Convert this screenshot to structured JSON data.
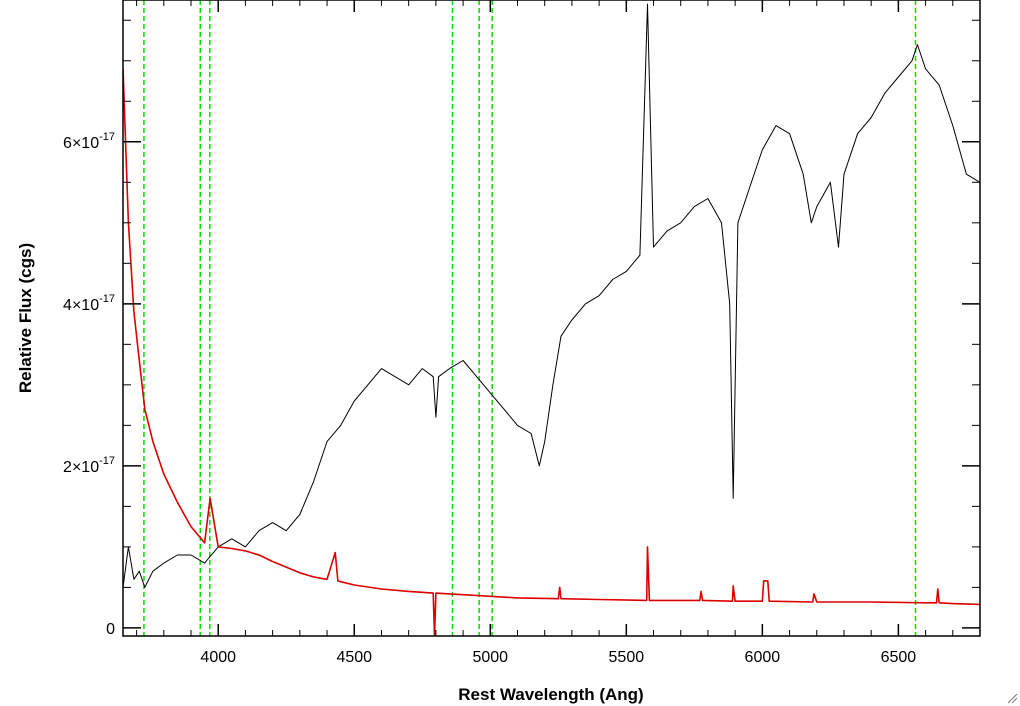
{
  "chart_data": {
    "type": "line",
    "xlabel": "Rest Wavelength (Ang)",
    "ylabel": "Relative Flux (cgs)",
    "xlim": [
      3650,
      6800
    ],
    "ylim": [
      -1e-18,
      7.75e-17
    ],
    "x_ticks": [
      {
        "value": 4000,
        "label": "4000"
      },
      {
        "value": 4500,
        "label": "4500"
      },
      {
        "value": 5000,
        "label": "5000"
      },
      {
        "value": 5500,
        "label": "5500"
      },
      {
        "value": 6000,
        "label": "6000"
      },
      {
        "value": 6500,
        "label": "6500"
      }
    ],
    "y_ticks": [
      {
        "value": 0,
        "mantissa": "0",
        "exponent": ""
      },
      {
        "value": 2e-17,
        "mantissa": "2×10",
        "exponent": "-17"
      },
      {
        "value": 4e-17,
        "mantissa": "4×10",
        "exponent": "-17"
      },
      {
        "value": 6e-17,
        "mantissa": "6×10",
        "exponent": "-17"
      }
    ],
    "grid": false,
    "legend": "none",
    "colors": {
      "spectrum": "#000000",
      "error": "#dd0000",
      "lines": "#00dd00"
    },
    "reference_lines": [
      3727,
      3934,
      3969,
      4861,
      4959,
      5007,
      6563
    ],
    "series": [
      {
        "color": "#000000",
        "x": [
          3650,
          3670,
          3690,
          3710,
          3730,
          3760,
          3800,
          3850,
          3900,
          3950,
          4000,
          4050,
          4100,
          4150,
          4200,
          4250,
          4300,
          4350,
          4400,
          4450,
          4500,
          4550,
          4600,
          4650,
          4700,
          4750,
          4790,
          4800,
          4810,
          4850,
          4900,
          4950,
          5000,
          5050,
          5100,
          5150,
          5180,
          5200,
          5230,
          5260,
          5300,
          5350,
          5400,
          5450,
          5500,
          5550,
          5578,
          5600,
          5650,
          5700,
          5750,
          5800,
          5850,
          5880,
          5893,
          5910,
          5950,
          6000,
          6050,
          6100,
          6150,
          6180,
          6200,
          6250,
          6280,
          6300,
          6350,
          6400,
          6450,
          6500,
          6550,
          6570,
          6600,
          6650,
          6700,
          6750,
          6800
        ],
        "y": [
          5e-18,
          1e-17,
          6e-18,
          7e-18,
          5e-18,
          7e-18,
          8e-18,
          9e-18,
          9e-18,
          8e-18,
          1e-17,
          1.1e-17,
          1e-17,
          1.2e-17,
          1.3e-17,
          1.2e-17,
          1.4e-17,
          1.8e-17,
          2.3e-17,
          2.5e-17,
          2.8e-17,
          3e-17,
          3.2e-17,
          3.1e-17,
          3e-17,
          3.2e-17,
          3.1e-17,
          2.6e-17,
          3.1e-17,
          3.2e-17,
          3.3e-17,
          3.1e-17,
          2.9e-17,
          2.7e-17,
          2.5e-17,
          2.4e-17,
          2e-17,
          2.3e-17,
          3e-17,
          3.6e-17,
          3.8e-17,
          4e-17,
          4.1e-17,
          4.3e-17,
          4.4e-17,
          4.6e-17,
          7.7e-17,
          4.7e-17,
          4.9e-17,
          5e-17,
          5.2e-17,
          5.3e-17,
          5e-17,
          4e-17,
          1.6e-17,
          5e-17,
          5.4e-17,
          5.9e-17,
          6.2e-17,
          6.1e-17,
          5.6e-17,
          5e-17,
          5.2e-17,
          5.5e-17,
          4.7e-17,
          5.6e-17,
          6.1e-17,
          6.3e-17,
          6.6e-17,
          6.8e-17,
          7e-17,
          7.2e-17,
          6.9e-17,
          6.7e-17,
          6.2e-17,
          5.6e-17,
          5.5e-17
        ]
      },
      {
        "color": "#dd0000",
        "x": [
          3650,
          3670,
          3690,
          3710,
          3730,
          3760,
          3800,
          3850,
          3900,
          3950,
          3970,
          4000,
          4050,
          4100,
          4150,
          4200,
          4250,
          4300,
          4350,
          4400,
          4430,
          4440,
          4450,
          4500,
          4600,
          4700,
          4790,
          4795,
          4800,
          4850,
          4900,
          5000,
          5100,
          5250,
          5255,
          5260,
          5400,
          5575,
          5578,
          5585,
          5600,
          5770,
          5775,
          5780,
          5890,
          5893,
          5900,
          6000,
          6005,
          6020,
          6025,
          6185,
          6190,
          6200,
          6400,
          6600,
          6640,
          6645,
          6650,
          6700,
          6800
        ],
        "y": [
          6.9e-17,
          5e-17,
          3.9e-17,
          3.3e-17,
          2.7e-17,
          2.3e-17,
          1.9e-17,
          1.55e-17,
          1.25e-17,
          1.05e-17,
          1.6e-17,
          1e-17,
          9.8e-18,
          9.5e-18,
          9e-18,
          8.2e-18,
          7.5e-18,
          6.8e-18,
          6.3e-18,
          6e-18,
          9.3e-18,
          5.8e-18,
          5.7e-18,
          5.3e-18,
          4.8e-18,
          4.5e-18,
          4.3e-18,
          -1e-18,
          4.3e-18,
          4.2e-18,
          4.1e-18,
          3.9e-18,
          3.7e-18,
          3.6e-18,
          5e-18,
          3.6e-18,
          3.5e-18,
          3.4e-18,
          1e-17,
          3.4e-18,
          3.4e-18,
          3.4e-18,
          4.5e-18,
          3.4e-18,
          3.3e-18,
          5.2e-18,
          3.3e-18,
          3.3e-18,
          5.8e-18,
          5.8e-18,
          3.3e-18,
          3.2e-18,
          4.2e-18,
          3.2e-18,
          3.2e-18,
          3.1e-18,
          3.1e-18,
          4.8e-18,
          3.1e-18,
          3e-18,
          2.9e-18
        ]
      }
    ]
  }
}
